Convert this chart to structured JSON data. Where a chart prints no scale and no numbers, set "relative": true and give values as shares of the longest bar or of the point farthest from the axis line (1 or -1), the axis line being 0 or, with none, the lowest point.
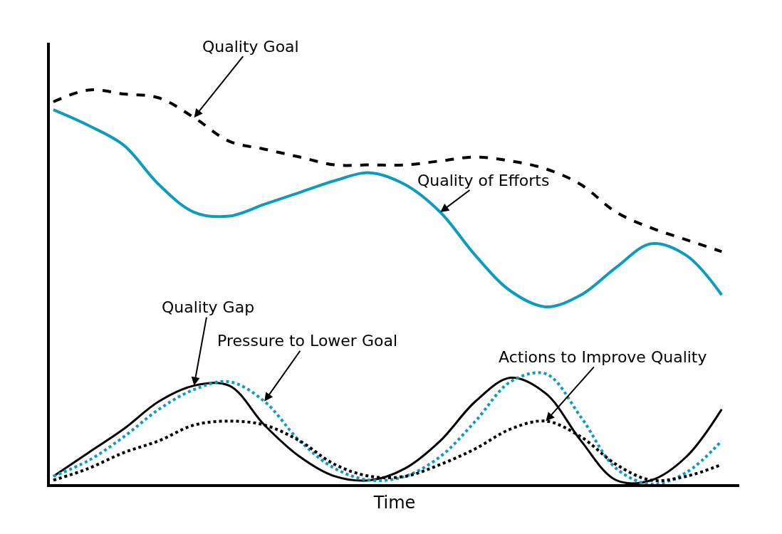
{
  "chart_data": {
    "type": "line",
    "relative": true,
    "xlabel": "Time",
    "legend": false,
    "grid": false,
    "tick_labels": false,
    "categories": [
      null,
      null,
      null,
      null,
      null,
      null,
      null,
      null,
      null,
      null,
      null,
      null,
      null,
      null,
      null,
      null,
      null,
      null,
      null,
      null
    ],
    "series": [
      {
        "name": "Quality Goal",
        "color": "#000000",
        "line_style": "dashed",
        "values": [
          0.97,
          1.0,
          0.99,
          0.98,
          0.93,
          0.87,
          0.85,
          0.83,
          0.81,
          0.81,
          0.81,
          0.82,
          0.83,
          0.82,
          0.8,
          0.76,
          0.69,
          0.65,
          0.62,
          0.59
        ]
      },
      {
        "name": "Quality of Efforts",
        "color": "#0f9ac0",
        "line_style": "solid",
        "values": [
          0.95,
          0.91,
          0.86,
          0.76,
          0.69,
          0.68,
          0.71,
          0.74,
          0.77,
          0.79,
          0.76,
          0.69,
          0.58,
          0.49,
          0.45,
          0.48,
          0.55,
          0.61,
          0.58,
          0.48
        ]
      },
      {
        "name": "Quality Gap",
        "color": "#000000",
        "line_style": "solid",
        "values": [
          0.02,
          0.08,
          0.14,
          0.21,
          0.25,
          0.25,
          0.15,
          0.07,
          0.02,
          0.01,
          0.04,
          0.11,
          0.21,
          0.27,
          0.23,
          0.11,
          0.01,
          0.01,
          0.07,
          0.19
        ]
      },
      {
        "name": "Pressure to Lower Goal",
        "color": "#0f9ac0",
        "line_style": "dotted",
        "values": [
          0.02,
          0.06,
          0.12,
          0.19,
          0.24,
          0.26,
          0.21,
          0.11,
          0.04,
          0.01,
          0.02,
          0.07,
          0.16,
          0.26,
          0.28,
          0.17,
          0.04,
          0.0,
          0.03,
          0.11
        ]
      },
      {
        "name": "Actions to Improve Quality",
        "color": "#000000",
        "line_style": "dotted",
        "values": [
          0.01,
          0.04,
          0.08,
          0.11,
          0.15,
          0.16,
          0.15,
          0.11,
          0.05,
          0.02,
          0.02,
          0.05,
          0.09,
          0.14,
          0.16,
          0.12,
          0.05,
          0.01,
          0.02,
          0.05
        ]
      }
    ]
  }
}
